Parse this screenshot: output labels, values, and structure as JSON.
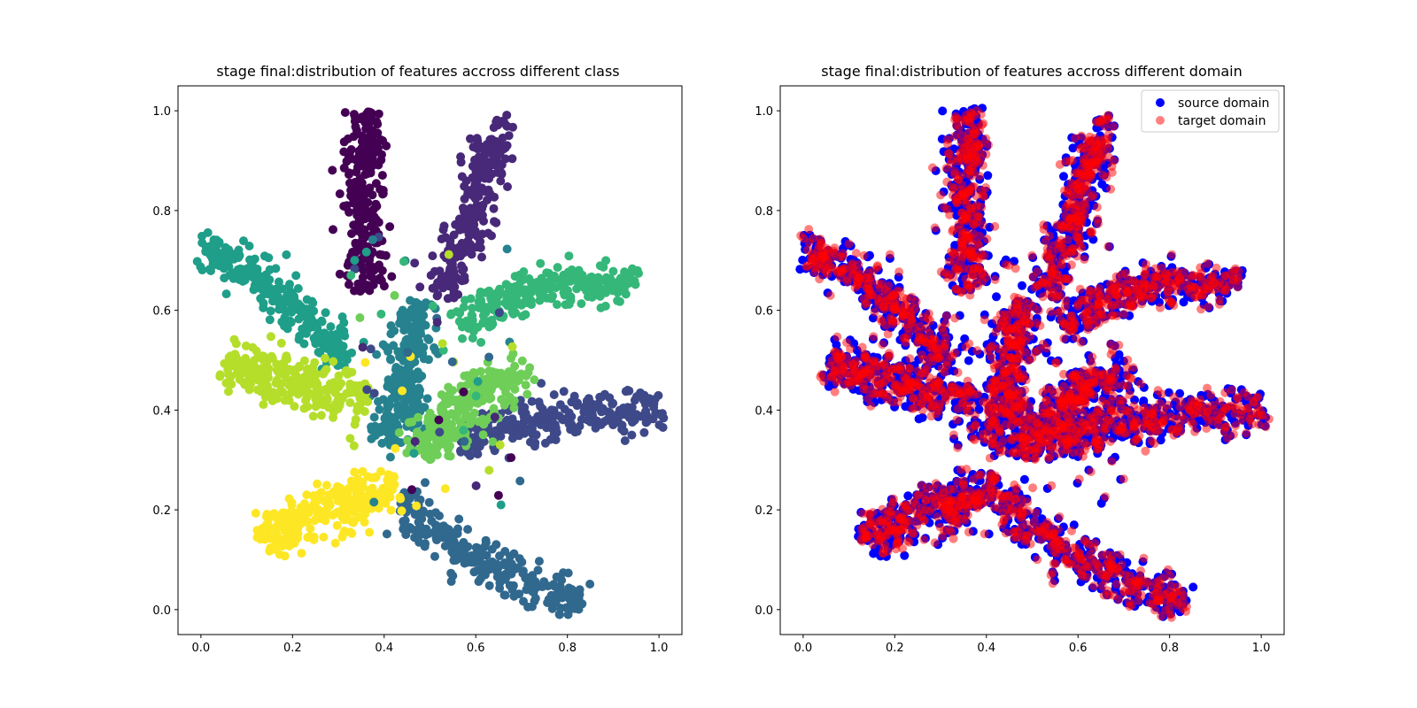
{
  "chart_data": [
    {
      "type": "scatter",
      "title": "stage final:distribution of features accross different class",
      "xlabel": "",
      "ylabel": "",
      "xlim": [
        -0.05,
        1.05
      ],
      "ylim": [
        -0.05,
        1.05
      ],
      "xticks": [
        "0.0",
        "0.2",
        "0.4",
        "0.6",
        "0.8",
        "1.0"
      ],
      "yticks": [
        "0.0",
        "0.2",
        "0.4",
        "0.6",
        "0.8",
        "1.0"
      ],
      "grid": false,
      "legend": false,
      "colormap": [
        "#440154",
        "#482878",
        "#3e4989",
        "#31688e",
        "#26828e",
        "#1f9e89",
        "#35b779",
        "#6ece58",
        "#b5de2b",
        "#fde725"
      ],
      "clusters": [
        {
          "class": 0,
          "color": "#440154",
          "path": [
            [
              0.36,
              1.0
            ],
            [
              0.36,
              0.64
            ]
          ],
          "width": 0.035
        },
        {
          "class": 1,
          "color": "#482878",
          "path": [
            [
              0.66,
              0.98
            ],
            [
              0.53,
              0.63
            ]
          ],
          "width": 0.035
        },
        {
          "class": 2,
          "color": "#3e4989",
          "path": [
            [
              1.0,
              0.4
            ],
            [
              0.67,
              0.38
            ],
            [
              0.56,
              0.32
            ]
          ],
          "width": 0.04
        },
        {
          "class": 3,
          "color": "#31688e",
          "path": [
            [
              0.43,
              0.22
            ],
            [
              0.6,
              0.1
            ],
            [
              0.83,
              0.01
            ]
          ],
          "width": 0.04
        },
        {
          "class": 4,
          "color": "#26828e",
          "path": [
            [
              0.47,
              0.62
            ],
            [
              0.45,
              0.48
            ],
            [
              0.42,
              0.33
            ]
          ],
          "width": 0.04
        },
        {
          "class": 5,
          "color": "#1f9e89",
          "path": [
            [
              0.0,
              0.73
            ],
            [
              0.18,
              0.63
            ],
            [
              0.32,
              0.5
            ]
          ],
          "width": 0.035
        },
        {
          "class": 6,
          "color": "#35b779",
          "path": [
            [
              0.95,
              0.66
            ],
            [
              0.72,
              0.65
            ],
            [
              0.57,
              0.57
            ]
          ],
          "width": 0.035
        },
        {
          "class": 7,
          "color": "#6ece58",
          "path": [
            [
              0.7,
              0.48
            ],
            [
              0.58,
              0.42
            ],
            [
              0.48,
              0.31
            ]
          ],
          "width": 0.045
        },
        {
          "class": 8,
          "color": "#b5de2b",
          "path": [
            [
              0.06,
              0.5
            ],
            [
              0.22,
              0.45
            ],
            [
              0.36,
              0.42
            ]
          ],
          "width": 0.045
        },
        {
          "class": 9,
          "color": "#fde725",
          "path": [
            [
              0.13,
              0.14
            ],
            [
              0.28,
              0.2
            ],
            [
              0.43,
              0.24
            ]
          ],
          "width": 0.045
        }
      ]
    },
    {
      "type": "scatter",
      "title": "stage final:distribution of features accross different domain",
      "xlabel": "",
      "ylabel": "",
      "xlim": [
        -0.05,
        1.05
      ],
      "ylim": [
        -0.05,
        1.05
      ],
      "xticks": [
        "0.0",
        "0.2",
        "0.4",
        "0.6",
        "0.8",
        "1.0"
      ],
      "yticks": [
        "0.0",
        "0.2",
        "0.4",
        "0.6",
        "0.8",
        "1.0"
      ],
      "grid": false,
      "legend_position": "upper right",
      "series": [
        {
          "name": "source domain",
          "color": "#0000ff",
          "alpha": 1.0
        },
        {
          "name": "target domain",
          "color": "#ff0000",
          "alpha": 0.5
        }
      ]
    }
  ]
}
